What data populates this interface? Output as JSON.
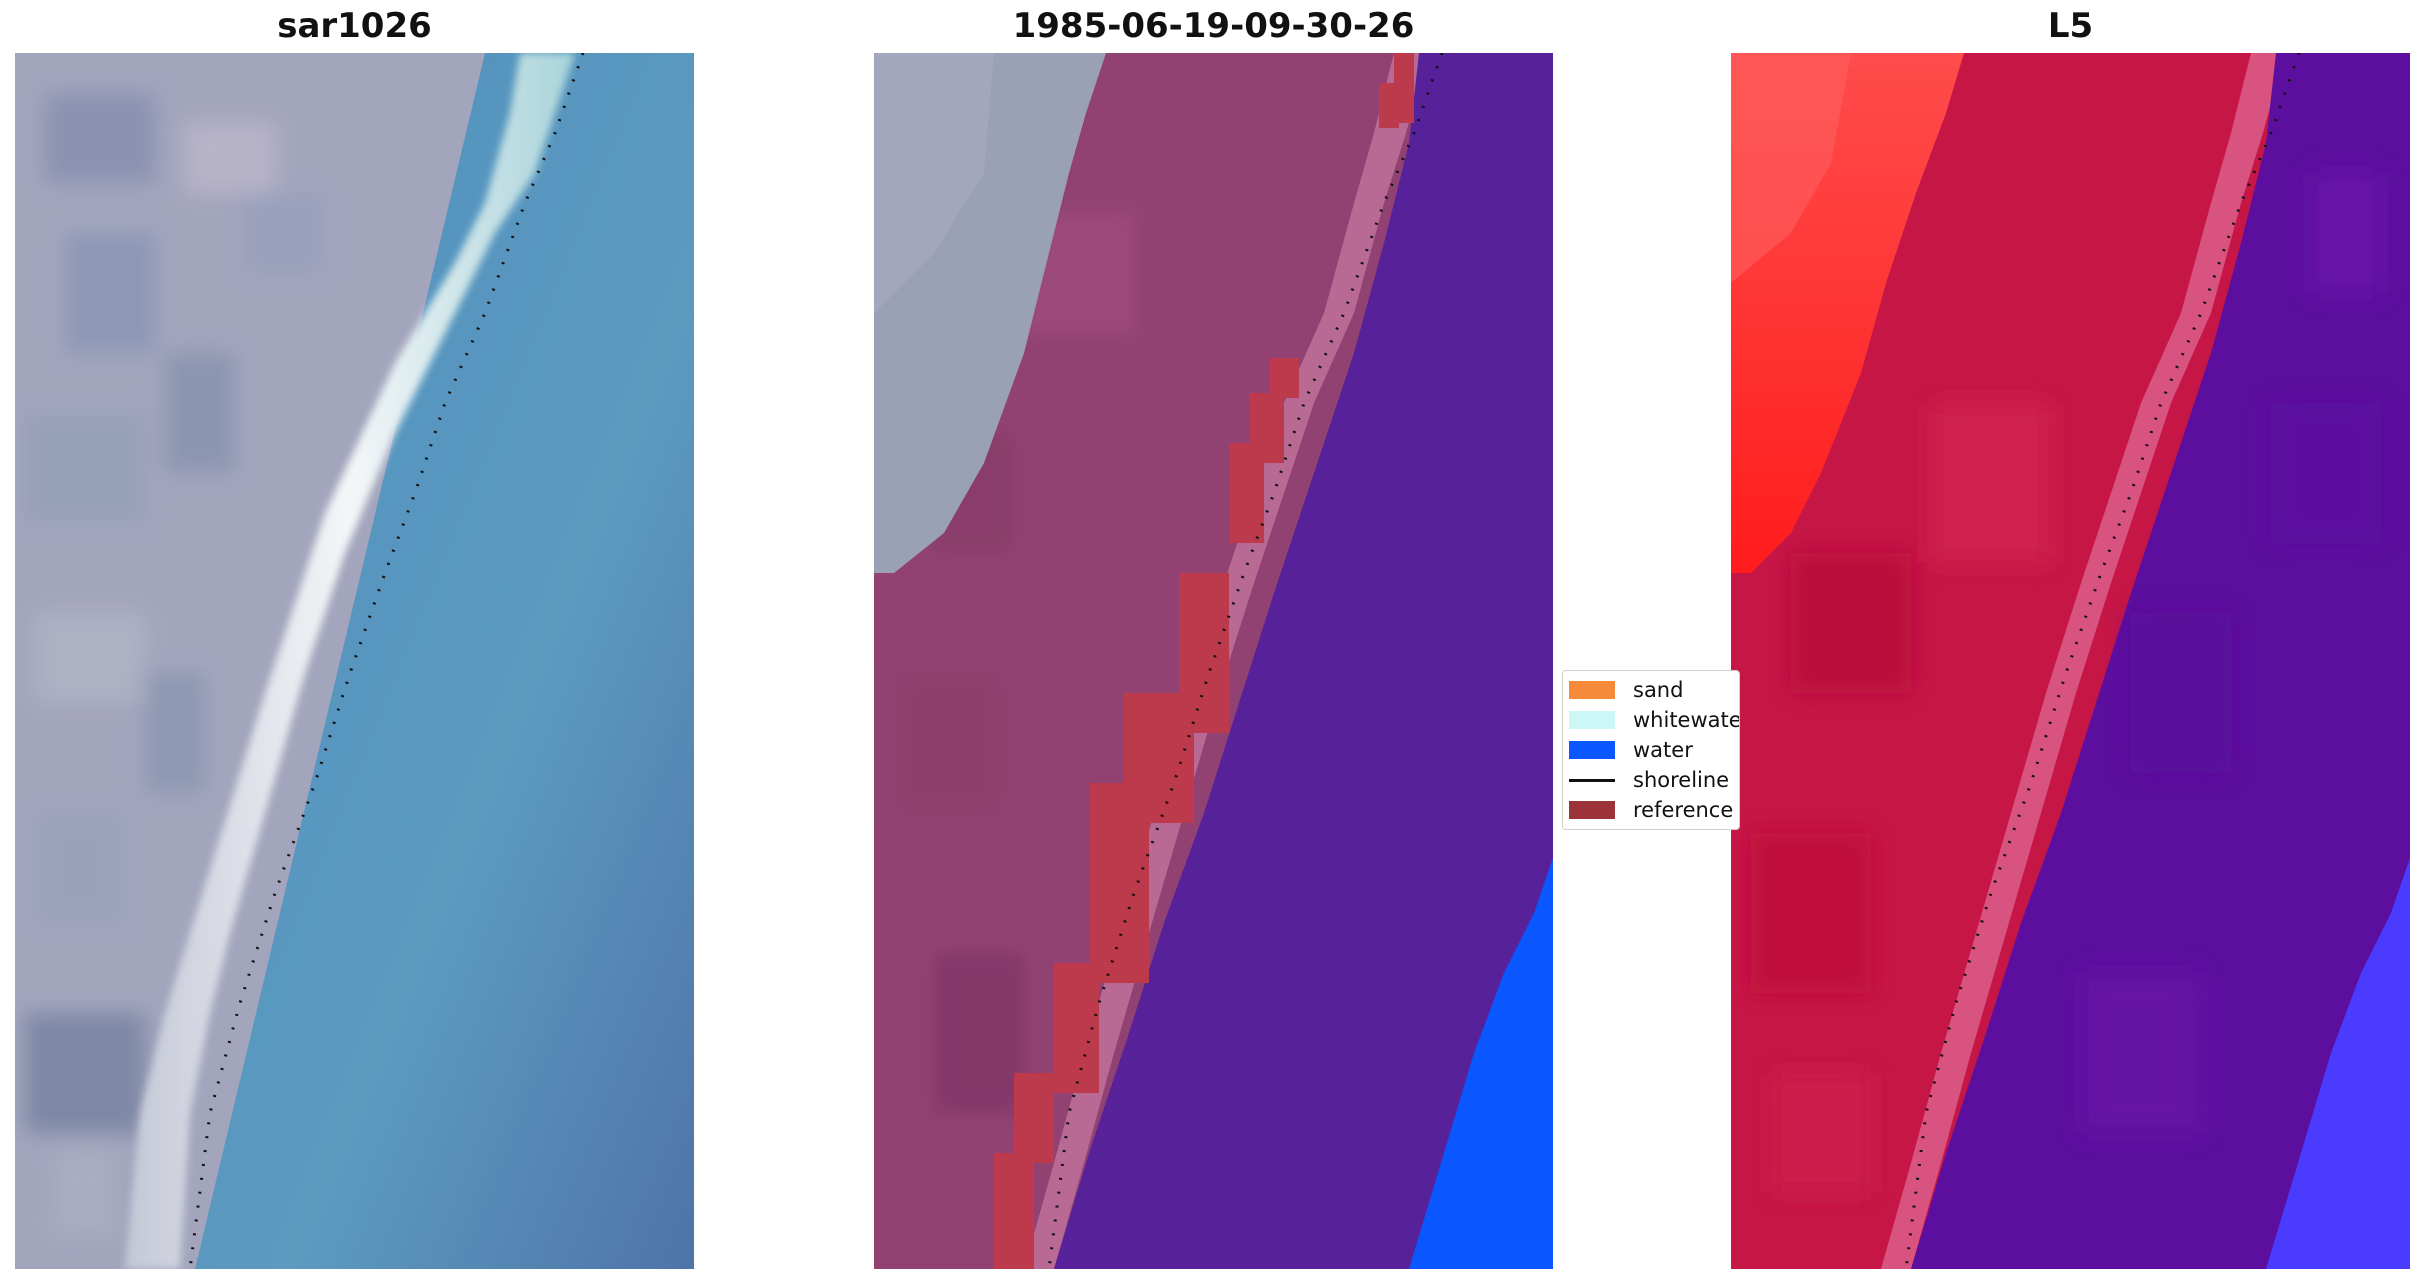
{
  "panels": [
    {
      "title": "sar1026"
    },
    {
      "title": "1985-06-19-09-30-26"
    },
    {
      "title": "L5"
    }
  ],
  "legend": {
    "items": [
      {
        "label": "sand",
        "color": "#f58a3a"
      },
      {
        "label": "whitewater",
        "color": "#ccf7f7"
      },
      {
        "label": "water",
        "color": "#0a57ff"
      },
      {
        "label": "shoreline",
        "color": "#111111"
      },
      {
        "label": "reference",
        "color": "#9b3338"
      }
    ]
  },
  "colors": {
    "sand_land": "#9b9bb3",
    "sea_rgb": "#5a93bd",
    "classified_sand": "#914272",
    "classified_water": "#57219a",
    "classified_reference": "#bd3a4d",
    "index_land": "#c20f3e",
    "index_water": "#5c0f9e",
    "index_red": "#ff1f2f"
  }
}
